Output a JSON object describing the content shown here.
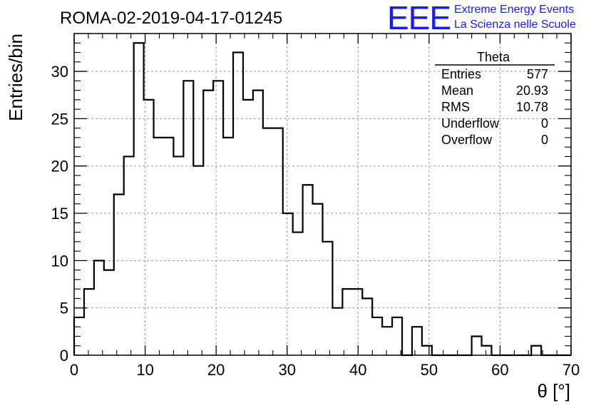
{
  "title": "ROMA-02-2019-04-17-01245",
  "logo": {
    "letters": "EEE",
    "line1": "Extreme Energy Events",
    "line2": "La Scienza nelle Scuole",
    "color": "#1a1aff"
  },
  "stats_box": {
    "header": "Theta",
    "rows": [
      {
        "label": "Entries",
        "value": "577"
      },
      {
        "label": "Mean",
        "value": "20.93"
      },
      {
        "label": "RMS",
        "value": "10.78"
      },
      {
        "label": "Underflow",
        "value": "0"
      },
      {
        "label": "Overflow",
        "value": "0"
      }
    ]
  },
  "chart_data": {
    "type": "histogram",
    "xlabel": "θ [°]",
    "ylabel": "Entries/bin",
    "xlim": [
      0,
      70
    ],
    "ylim": [
      0,
      34
    ],
    "grid": true,
    "x_ticks": [
      "0",
      "10",
      "20",
      "30",
      "40",
      "50",
      "60",
      "70"
    ],
    "y_ticks": [
      "0",
      "5",
      "10",
      "15",
      "20",
      "25",
      "30"
    ],
    "bin_width": 1.4,
    "bin_edges_start": 0,
    "values": [
      4,
      7,
      10,
      9,
      17,
      21,
      33,
      27,
      23,
      23,
      21,
      29,
      20,
      28,
      29,
      23,
      32,
      27,
      28,
      24,
      24,
      15,
      13,
      18,
      16,
      12,
      5,
      7,
      7,
      6,
      4,
      3,
      4,
      0,
      3,
      1,
      0,
      0,
      0,
      0,
      2,
      1,
      0,
      0,
      0,
      0,
      1,
      0,
      0,
      0
    ],
    "line_color": "#000000"
  }
}
